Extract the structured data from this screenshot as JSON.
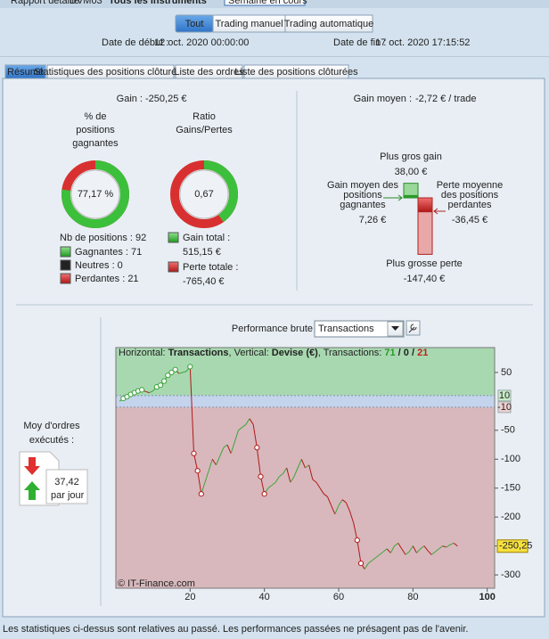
{
  "top_bar": {
    "report": "Rapport détaillé",
    "account": "DVM03",
    "instruments": "Tous les instruments",
    "period": "Semaine en cours"
  },
  "filter": {
    "buttons": [
      "Tout",
      "Trading manuel",
      "Trading automatique"
    ],
    "start_date_label": "Date de début :",
    "start_date": "12 oct. 2020 00:00:00",
    "end_date_label": "Date de fin :",
    "end_date": "17 oct. 2020 17:15:52"
  },
  "tabs": [
    "Résumé",
    "Statistiques des positions clôturées",
    "Liste des ordres",
    "Liste des positions clôturées"
  ],
  "summary": {
    "gain_label": "Gain :",
    "gain": "-250,25 €",
    "win_pct_title": [
      "% de",
      "positions",
      "gagnantes"
    ],
    "win_pct": {
      "value": 77.17,
      "label": "77,17 %"
    },
    "ratio_title": [
      "Ratio",
      "Gains/Pertes"
    ],
    "ratio": "0,67",
    "nb_positions": "Nb de positions : 92",
    "winners": "Gagnantes : 71",
    "neutral": "Neutres : 0",
    "losers": "Perdantes : 21",
    "total_gain_label": "Gain total :",
    "total_gain": {
      "value": 515.15,
      "label": "515,15 €"
    },
    "total_loss_label": "Perte totale :",
    "total_loss": {
      "value": -765.4,
      "label": "-765,40 €"
    }
  },
  "average": {
    "label": "Gain moyen :",
    "value": "-2,72 € / trade",
    "biggest_gain_label": "Plus gros gain",
    "biggest_gain": {
      "value": 38.0,
      "label": "38,00 €"
    },
    "avg_gain_label": [
      "Gain moyen des",
      "positions",
      "gagnantes"
    ],
    "avg_gain": {
      "value": 7.26,
      "label": "7,26 €"
    },
    "avg_loss_label": [
      "Perte moyenne",
      "des positions",
      "perdantes"
    ],
    "avg_loss": {
      "value": -36.45,
      "label": "-36,45 €"
    },
    "biggest_loss_label": "Plus grosse perte",
    "biggest_loss": {
      "value": -147.4,
      "label": "-147,40 €"
    }
  },
  "orders": {
    "title": [
      "Moy d'ordres",
      "exécutés :"
    ],
    "value": "37,42",
    "unit": "par jour"
  },
  "chart": {
    "type": "line",
    "title": "Performance brute",
    "dropdown": "Transactions",
    "info": [
      {
        "text": "Horizontal: ",
        "bold": false,
        "color": "#222"
      },
      {
        "text": "Transactions",
        "bold": true,
        "color": "#222"
      },
      {
        "text": ", Vertical: ",
        "bold": false,
        "color": "#222"
      },
      {
        "text": "Devise (€)",
        "bold": true,
        "color": "#222"
      },
      {
        "text": ", Transactions: ",
        "bold": false,
        "color": "#222"
      },
      {
        "text": "71",
        "bold": true,
        "color": "#2a9a2a"
      },
      {
        "text": " / ",
        "bold": true,
        "color": "#222"
      },
      {
        "text": "0",
        "bold": true,
        "color": "#222"
      },
      {
        "text": " / ",
        "bold": true,
        "color": "#222"
      },
      {
        "text": "21",
        "bold": true,
        "color": "#c02020"
      }
    ],
    "copyright": "© IT-Finance.com",
    "xlim": [
      0,
      102
    ],
    "ylim": [
      -323,
      93
    ],
    "xticks": [
      20,
      40,
      60,
      80,
      100
    ],
    "yticks": [
      50,
      -50,
      -100,
      -150,
      -200,
      -250,
      -300
    ],
    "zone_ticks": [
      10,
      -10
    ],
    "last_label": "-250,25",
    "up_color": "#3aa53a",
    "down_color": "#b01818",
    "x": [
      1,
      2,
      3,
      4,
      5,
      6,
      7,
      8,
      9,
      10,
      11,
      12,
      13,
      14,
      15,
      16,
      17,
      18,
      19,
      20,
      21,
      22,
      23,
      24,
      25,
      26,
      27,
      28,
      29,
      30,
      31,
      32,
      33,
      34,
      35,
      36,
      37,
      38,
      39,
      40,
      41,
      42,
      43,
      44,
      45,
      46,
      47,
      48,
      49,
      50,
      51,
      52,
      53,
      54,
      55,
      56,
      57,
      58,
      59,
      60,
      61,
      62,
      63,
      64,
      65,
      66,
      67,
      68,
      69,
      70,
      71,
      72,
      73,
      74,
      75,
      76,
      77,
      78,
      79,
      80,
      81,
      82,
      83,
      84,
      85,
      86,
      87,
      88,
      89,
      90,
      91,
      92
    ],
    "values": [
      0,
      5,
      8,
      12,
      15,
      18,
      20,
      17,
      15,
      18,
      25,
      28,
      35,
      45,
      50,
      55,
      48,
      50,
      52,
      60,
      -90,
      -120,
      -160,
      -140,
      -120,
      -100,
      -110,
      -95,
      -80,
      -75,
      -90,
      -70,
      -50,
      -45,
      -40,
      -30,
      -40,
      -80,
      -130,
      -160,
      -150,
      -145,
      -140,
      -130,
      -125,
      -115,
      -140,
      -130,
      -115,
      -100,
      -115,
      -110,
      -135,
      -140,
      -150,
      -160,
      -165,
      -180,
      -195,
      -180,
      -170,
      -175,
      -190,
      -210,
      -240,
      -280,
      -290,
      -280,
      -275,
      -270,
      -265,
      -260,
      -255,
      -262,
      -250,
      -245,
      -255,
      -265,
      -260,
      -250,
      -262,
      -255,
      -250,
      -258,
      -265,
      -260,
      -255,
      -250,
      -252,
      -248,
      -245,
      -250.25
    ]
  },
  "footer": "Les statistiques ci-dessus sont relatives au passé. Les performances passées ne présagent pas de l'avenir."
}
